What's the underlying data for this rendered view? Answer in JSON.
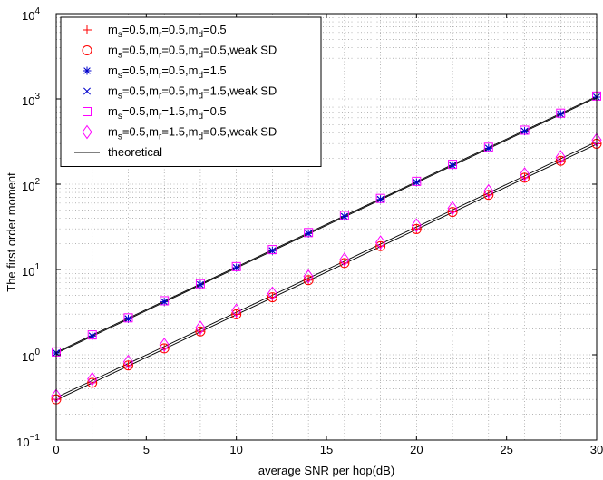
{
  "chart_data": {
    "type": "line",
    "xlabel": "average SNR per hop(dB)",
    "ylabel": "The first order moment",
    "xlim": [
      0,
      30
    ],
    "ylim": [
      0.1,
      10000
    ],
    "yscale": "log",
    "grid": true,
    "legend_position": "top-left",
    "x_ticks": [
      "0",
      "5",
      "10",
      "15",
      "20",
      "25",
      "30"
    ],
    "y_ticks": [
      {
        "base": "10",
        "exp": "−1",
        "value": 0.1
      },
      {
        "base": "10",
        "exp": "0",
        "value": 1
      },
      {
        "base": "10",
        "exp": "1",
        "value": 10
      },
      {
        "base": "10",
        "exp": "2",
        "value": 100
      },
      {
        "base": "10",
        "exp": "3",
        "value": 1000
      },
      {
        "base": "10",
        "exp": "4",
        "value": 10000
      }
    ],
    "x": [
      0,
      2,
      4,
      6,
      8,
      10,
      12,
      14,
      16,
      18,
      20,
      22,
      24,
      26,
      28,
      30
    ],
    "series": [
      {
        "name": "m_s=0.5,m_r=0.5,m_d=0.5",
        "legend": [
          [
            "m",
            "s",
            "=0.5,"
          ],
          [
            "m",
            "r",
            "=0.5,"
          ],
          [
            "m",
            "d",
            "=0.5"
          ]
        ],
        "marker": "plus",
        "color": "#ff0000",
        "values": [
          0.3,
          0.47,
          0.75,
          1.19,
          1.88,
          2.98,
          4.73,
          7.5,
          11.9,
          18.8,
          29.8,
          47.3,
          75.0,
          119,
          188,
          298
        ]
      },
      {
        "name": "m_s=0.5,m_r=0.5,m_d=0.5,weak SD",
        "legend": [
          [
            "m",
            "s",
            "=0.5,"
          ],
          [
            "m",
            "r",
            "=0.5,"
          ],
          [
            "m",
            "d",
            "=0.5,weak SD"
          ]
        ],
        "marker": "circle",
        "color": "#ff0000",
        "values": [
          0.3,
          0.47,
          0.75,
          1.19,
          1.88,
          2.98,
          4.73,
          7.5,
          11.9,
          18.8,
          29.8,
          47.3,
          75.0,
          119,
          188,
          298
        ]
      },
      {
        "name": "m_s=0.5,m_r=0.5,m_d=1.5",
        "legend": [
          [
            "m",
            "s",
            "=0.5,"
          ],
          [
            "m",
            "r",
            "=0.5,"
          ],
          [
            "m",
            "d",
            "=1.5"
          ]
        ],
        "marker": "star",
        "color": "#0000cc",
        "values": [
          1.05,
          1.66,
          2.64,
          4.18,
          6.63,
          10.5,
          16.6,
          26.4,
          41.8,
          66.3,
          105,
          166,
          264,
          418,
          663,
          1050
        ]
      },
      {
        "name": "m_s=0.5,m_r=0.5,m_d=1.5,weak SD",
        "legend": [
          [
            "m",
            "s",
            "=0.5,"
          ],
          [
            "m",
            "r",
            "=0.5,"
          ],
          [
            "m",
            "d",
            "=1.5,weak SD"
          ]
        ],
        "marker": "x",
        "color": "#0000cc",
        "values": [
          1.05,
          1.66,
          2.64,
          4.18,
          6.63,
          10.5,
          16.6,
          26.4,
          41.8,
          66.3,
          105,
          166,
          264,
          418,
          663,
          1050
        ]
      },
      {
        "name": "m_s=0.5,m_r=1.5,m_d=0.5",
        "legend": [
          [
            "m",
            "s",
            "=0.5,"
          ],
          [
            "m",
            "r",
            "=1.5,"
          ],
          [
            "m",
            "d",
            "=0.5"
          ]
        ],
        "marker": "square",
        "color": "#ff00ff",
        "values": [
          1.08,
          1.71,
          2.71,
          4.3,
          6.81,
          10.8,
          17.1,
          27.1,
          43.0,
          68.1,
          108,
          171,
          271,
          430,
          681,
          1080
        ]
      },
      {
        "name": "m_s=0.5,m_r=1.5,m_d=0.5,weak SD",
        "legend": [
          [
            "m",
            "s",
            "=0.5,"
          ],
          [
            "m",
            "r",
            "=1.5,"
          ],
          [
            "m",
            "d",
            "=0.5,weak SD"
          ]
        ],
        "marker": "diamond",
        "color": "#ff00ff",
        "values": [
          0.33,
          0.52,
          0.83,
          1.31,
          2.08,
          3.3,
          5.23,
          8.29,
          13.1,
          20.8,
          33.0,
          52.3,
          82.9,
          131,
          208,
          330
        ]
      },
      {
        "name": "theoretical",
        "legend": [
          [
            "",
            "",
            "theoretical"
          ]
        ],
        "marker": "line",
        "color": "#000000",
        "lines": [
          [
            0.295,
            0.467,
            0.74,
            1.17,
            1.86,
            2.95,
            4.67,
            7.4,
            11.7,
            18.6,
            29.5,
            46.7,
            74.0,
            117,
            186,
            295
          ],
          [
            0.315,
            0.499,
            0.791,
            1.25,
            1.99,
            3.15,
            4.99,
            7.91,
            12.5,
            19.9,
            31.5,
            49.9,
            79.1,
            125,
            199,
            315
          ],
          [
            1.04,
            1.65,
            2.61,
            4.14,
            6.56,
            10.4,
            16.5,
            26.1,
            41.4,
            65.6,
            104,
            165,
            261,
            414,
            656,
            1040
          ],
          [
            1.07,
            1.7,
            2.69,
            4.26,
            6.75,
            10.7,
            17.0,
            26.9,
            42.6,
            67.5,
            107,
            170,
            269,
            426,
            675,
            1070
          ]
        ]
      }
    ]
  }
}
